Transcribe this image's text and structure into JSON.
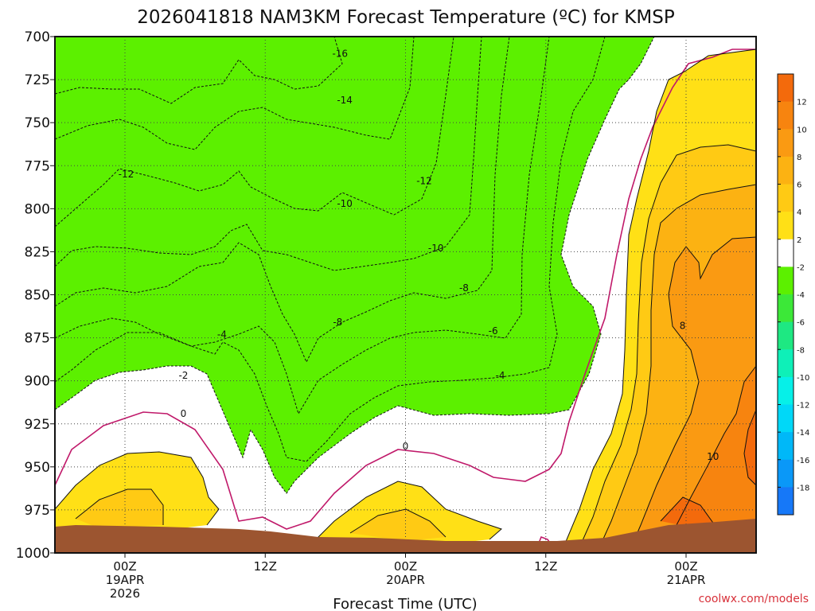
{
  "chart_data": {
    "type": "heatmap",
    "title": "2026041818 NAM3KM Forecast Temperature (ºC) for KMSP",
    "xlabel": "Forecast Time (UTC)",
    "credit": "coolwx.com/models",
    "y_axis": {
      "unit": "hPa",
      "range": [
        700,
        1000
      ],
      "inverted": true,
      "ticks": [
        "700",
        "725",
        "750",
        "775",
        "800",
        "825",
        "850",
        "875",
        "900",
        "925",
        "950",
        "975",
        "1000"
      ]
    },
    "x_axis": {
      "ticks": [
        {
          "time_h": 0,
          "lines": [
            "00Z",
            "19APR",
            "2026"
          ]
        },
        {
          "time_h": 12,
          "lines": [
            "12Z"
          ]
        },
        {
          "time_h": 24,
          "lines": [
            "00Z",
            "20APR"
          ]
        },
        {
          "time_h": 36,
          "lines": [
            "12Z"
          ]
        },
        {
          "time_h": 48,
          "lines": [
            "00Z",
            "21APR"
          ]
        }
      ]
    },
    "grid": true,
    "colorbar": {
      "placement": "right",
      "tick_labels": [
        "12",
        "10",
        "8",
        "6",
        "4",
        "2",
        "-2",
        "-4",
        "-6",
        "-8",
        "-10",
        "-12",
        "-14",
        "-16",
        "-18"
      ],
      "bands": [
        {
          "range": [
            12,
            14
          ],
          "color": "#f36a0c"
        },
        {
          "range": [
            10,
            12
          ],
          "color": "#f7840f"
        },
        {
          "range": [
            8,
            10
          ],
          "color": "#fa9a12"
        },
        {
          "range": [
            6,
            8
          ],
          "color": "#fcb212"
        },
        {
          "range": [
            4,
            6
          ],
          "color": "#ffca14"
        },
        {
          "range": [
            2,
            4
          ],
          "color": "#ffe016"
        },
        {
          "range": [
            -2,
            2
          ],
          "color": "#ffffff"
        },
        {
          "range": [
            -4,
            -2
          ],
          "color": "#5cf000"
        },
        {
          "range": [
            -6,
            -4
          ],
          "color": "#3ce838"
        },
        {
          "range": [
            -8,
            -6
          ],
          "color": "#1ee882"
        },
        {
          "range": [
            -10,
            -8
          ],
          "color": "#0ef0b8"
        },
        {
          "range": [
            -12,
            -10
          ],
          "color": "#06f0e8"
        },
        {
          "range": [
            -14,
            -12
          ],
          "color": "#00d8f8"
        },
        {
          "range": [
            -16,
            -14
          ],
          "color": "#00b8f8"
        },
        {
          "range": [
            -18,
            -16
          ],
          "color": "#0a98f8"
        },
        {
          "range": [
            -20,
            -18
          ],
          "color": "#1678f8"
        }
      ]
    },
    "contour_labels": [
      {
        "value": "-16",
        "time_h": 18.4,
        "p": 710
      },
      {
        "value": "-14",
        "time_h": 18.8,
        "p": 737
      },
      {
        "value": "-12",
        "time_h": 0.1,
        "p": 780
      },
      {
        "value": "-12",
        "time_h": 25.6,
        "p": 784
      },
      {
        "value": "-10",
        "time_h": 18.8,
        "p": 797
      },
      {
        "value": "-10",
        "time_h": 26.6,
        "p": 823
      },
      {
        "value": "-8",
        "time_h": 18.2,
        "p": 866
      },
      {
        "value": "-8",
        "time_h": 29.0,
        "p": 846
      },
      {
        "value": "-6",
        "time_h": 31.5,
        "p": 871
      },
      {
        "value": "-4",
        "time_h": 8.3,
        "p": 873
      },
      {
        "value": "-4",
        "time_h": 32.1,
        "p": 897
      },
      {
        "value": "-2",
        "time_h": 5.0,
        "p": 897
      },
      {
        "value": "0",
        "time_h": 5.0,
        "p": 919
      },
      {
        "value": "0",
        "time_h": 24.0,
        "p": 938
      },
      {
        "value": "8",
        "time_h": 47.7,
        "p": 868
      },
      {
        "value": "10",
        "time_h": 50.3,
        "p": 944
      }
    ],
    "terrain_color": "#9c5530"
  }
}
